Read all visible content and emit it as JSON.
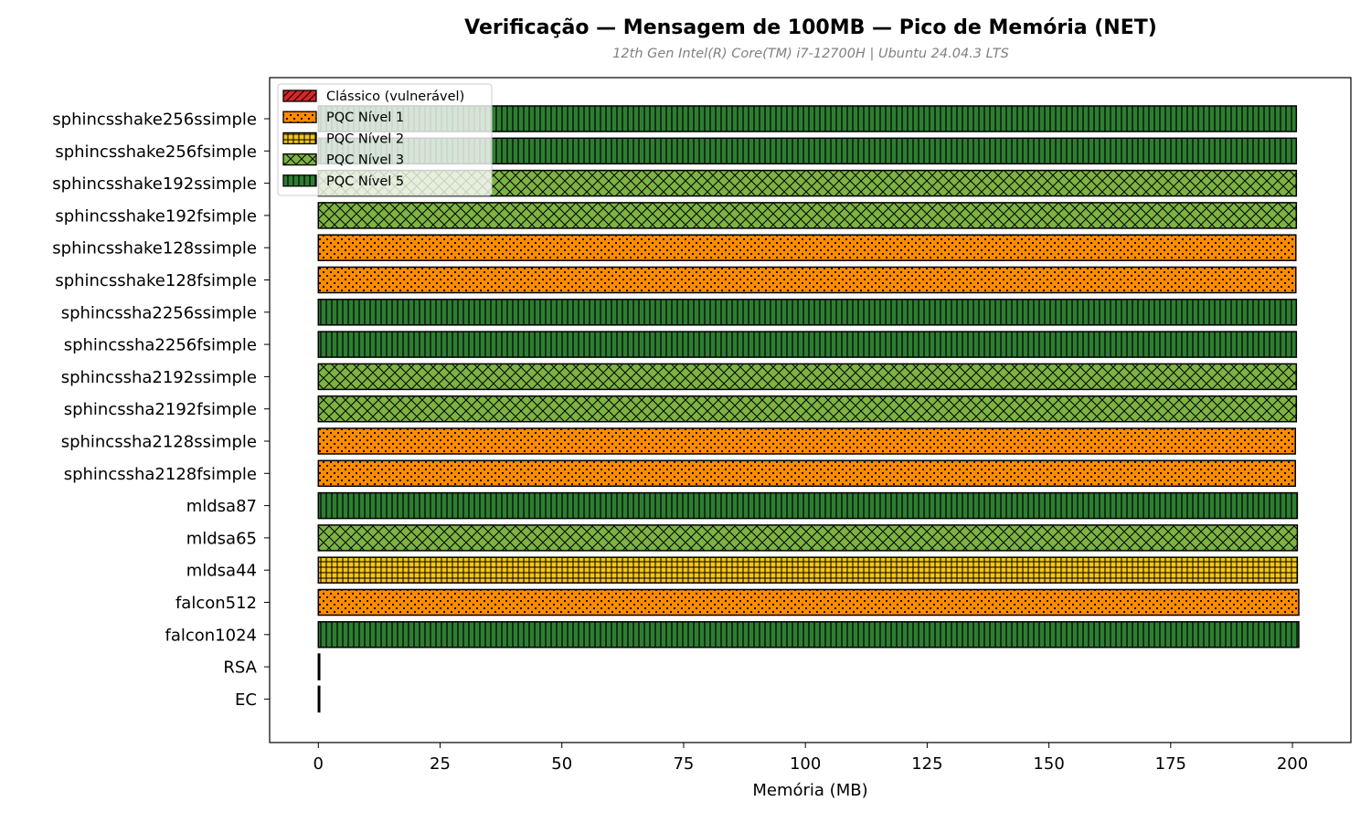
{
  "chart_data": {
    "type": "bar",
    "orientation": "horizontal",
    "title": "Verificação — Mensagem de 100MB — Pico de Memória (NET)",
    "subtitle": "12th Gen Intel(R) Core(TM) i7-12700H | Ubuntu 24.04.3 LTS",
    "xlabel": "Memória (MB)",
    "ylabel": "",
    "xlim": [
      -10,
      212
    ],
    "xticks": [
      0,
      25,
      50,
      75,
      100,
      125,
      150,
      175,
      200
    ],
    "grid": false,
    "legend_position": "top-left",
    "legend": [
      {
        "label": "Clássico (vulnerável)",
        "category": "classic"
      },
      {
        "label": "PQC Nível 1",
        "category": "level1"
      },
      {
        "label": "PQC Nível 2",
        "category": "level2"
      },
      {
        "label": "PQC Nível 3",
        "category": "level3"
      },
      {
        "label": "PQC Nível 5",
        "category": "level5"
      }
    ],
    "colors": {
      "classic": "#d62728",
      "level1": "#ff8c00",
      "level2": "#f5c518",
      "level3": "#7cb342",
      "level5": "#2e7d32"
    },
    "bars": [
      {
        "name": "sphincsshake256ssimple",
        "value": 200.8,
        "category": "level5"
      },
      {
        "name": "sphincsshake256fsimple",
        "value": 200.8,
        "category": "level5"
      },
      {
        "name": "sphincsshake192ssimple",
        "value": 200.8,
        "category": "level3"
      },
      {
        "name": "sphincsshake192fsimple",
        "value": 200.8,
        "category": "level3"
      },
      {
        "name": "sphincsshake128ssimple",
        "value": 200.7,
        "category": "level1"
      },
      {
        "name": "sphincsshake128fsimple",
        "value": 200.7,
        "category": "level1"
      },
      {
        "name": "sphincssha2256ssimple",
        "value": 200.8,
        "category": "level5"
      },
      {
        "name": "sphincssha2256fsimple",
        "value": 200.8,
        "category": "level5"
      },
      {
        "name": "sphincssha2192ssimple",
        "value": 200.8,
        "category": "level3"
      },
      {
        "name": "sphincssha2192fsimple",
        "value": 200.8,
        "category": "level3"
      },
      {
        "name": "sphincssha2128ssimple",
        "value": 200.6,
        "category": "level1"
      },
      {
        "name": "sphincssha2128fsimple",
        "value": 200.6,
        "category": "level1"
      },
      {
        "name": "mldsa87",
        "value": 201.0,
        "category": "level5"
      },
      {
        "name": "mldsa65",
        "value": 201.0,
        "category": "level3"
      },
      {
        "name": "mldsa44",
        "value": 201.0,
        "category": "level2"
      },
      {
        "name": "falcon512",
        "value": 201.3,
        "category": "level1"
      },
      {
        "name": "falcon1024",
        "value": 201.3,
        "category": "level5"
      },
      {
        "name": "RSA",
        "value": 0.2,
        "category": "classic"
      },
      {
        "name": "EC",
        "value": 0.2,
        "category": "classic"
      }
    ]
  }
}
